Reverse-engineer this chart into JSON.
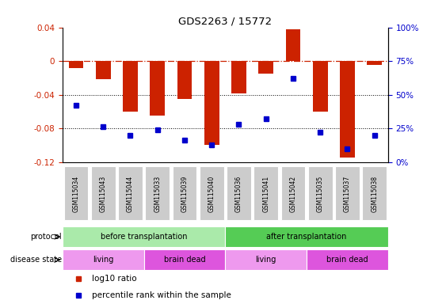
{
  "title": "GDS2263 / 15772",
  "samples": [
    "GSM115034",
    "GSM115043",
    "GSM115044",
    "GSM115033",
    "GSM115039",
    "GSM115040",
    "GSM115036",
    "GSM115041",
    "GSM115042",
    "GSM115035",
    "GSM115037",
    "GSM115038"
  ],
  "log10_ratio": [
    -0.008,
    -0.022,
    -0.06,
    -0.065,
    -0.045,
    -0.1,
    -0.038,
    -0.015,
    0.038,
    -0.06,
    -0.115,
    -0.005
  ],
  "percentile_rank": [
    42,
    26,
    20,
    24,
    16,
    13,
    28,
    32,
    62,
    22,
    10,
    20
  ],
  "ylim_left": [
    -0.12,
    0.04
  ],
  "ylim_right": [
    0,
    100
  ],
  "bar_color": "#cc2200",
  "dot_color": "#0000cc",
  "protocol_groups": [
    {
      "label": "before transplantation",
      "start": 0,
      "end": 6,
      "color": "#aaeaaa"
    },
    {
      "label": "after transplantation",
      "start": 6,
      "end": 12,
      "color": "#55cc55"
    }
  ],
  "disease_groups": [
    {
      "label": "living",
      "start": 0,
      "end": 3,
      "color": "#ee99ee"
    },
    {
      "label": "brain dead",
      "start": 3,
      "end": 6,
      "color": "#dd55dd"
    },
    {
      "label": "living",
      "start": 6,
      "end": 9,
      "color": "#ee99ee"
    },
    {
      "label": "brain dead",
      "start": 9,
      "end": 12,
      "color": "#dd55dd"
    }
  ],
  "legend_items": [
    {
      "label": "log10 ratio",
      "color": "#cc2200"
    },
    {
      "label": "percentile rank within the sample",
      "color": "#0000cc"
    }
  ],
  "tick_label_bg": "#cccccc"
}
